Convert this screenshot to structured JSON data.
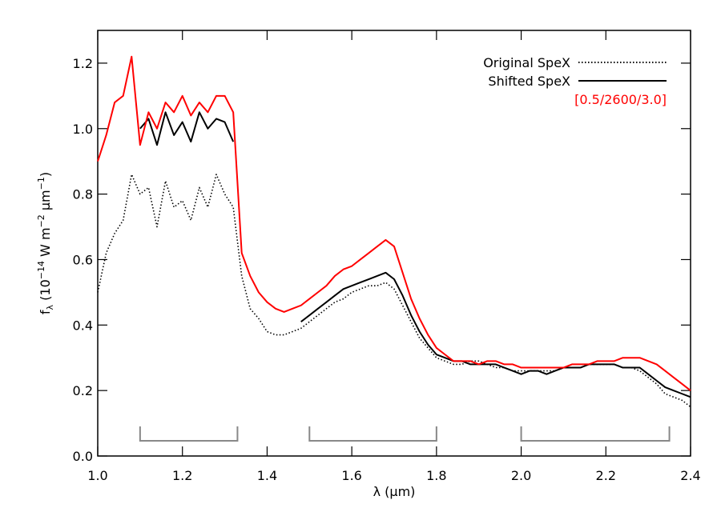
{
  "chart_data": {
    "type": "line",
    "xlabel": "λ (μm)",
    "ylabel_parts": [
      "f",
      "λ",
      " (10",
      "−14",
      " W m",
      "−2",
      " μm",
      "−1",
      ")"
    ],
    "xlim": [
      1.0,
      2.4
    ],
    "ylim": [
      0.0,
      1.3
    ],
    "xticks": [
      {
        "value": 1.0,
        "label": "1.0"
      },
      1.2,
      1.4,
      1.6,
      1.8,
      {
        "value": 2.0,
        "label": "2.0"
      },
      2.2,
      2.4
    ],
    "yticks": [
      {
        "value": 0.0,
        "label": "0.0"
      },
      0.2,
      0.4,
      0.6,
      0.8,
      {
        "value": 1.0,
        "label": "1.0"
      },
      1.2
    ],
    "legend_position": "top-right",
    "x": [
      1.0,
      1.02,
      1.04,
      1.06,
      1.08,
      1.1,
      1.12,
      1.14,
      1.16,
      1.18,
      1.2,
      1.22,
      1.24,
      1.26,
      1.28,
      1.3,
      1.32,
      1.34,
      1.36,
      1.38,
      1.4,
      1.42,
      1.44,
      1.46,
      1.48,
      1.5,
      1.52,
      1.54,
      1.56,
      1.58,
      1.6,
      1.62,
      1.64,
      1.66,
      1.68,
      1.7,
      1.72,
      1.74,
      1.76,
      1.78,
      1.8,
      1.82,
      1.84,
      1.86,
      1.88,
      1.9,
      1.92,
      1.94,
      1.96,
      1.98,
      2.0,
      2.02,
      2.04,
      2.06,
      2.08,
      2.1,
      2.12,
      2.14,
      2.16,
      2.18,
      2.2,
      2.22,
      2.24,
      2.26,
      2.28,
      2.3,
      2.32,
      2.34,
      2.36,
      2.38,
      2.4
    ],
    "series": [
      {
        "name": "Original SpeX",
        "color": "#000000",
        "linestyle": "dotted",
        "legend_line": true,
        "values": [
          0.5,
          0.62,
          0.68,
          0.72,
          0.86,
          0.8,
          0.82,
          0.7,
          0.84,
          0.76,
          0.78,
          0.72,
          0.82,
          0.76,
          0.86,
          0.8,
          0.76,
          0.55,
          0.45,
          0.42,
          0.38,
          0.37,
          0.37,
          0.38,
          0.39,
          0.41,
          0.43,
          0.45,
          0.47,
          0.48,
          0.5,
          0.51,
          0.52,
          0.52,
          0.53,
          0.51,
          0.46,
          0.41,
          0.36,
          0.33,
          0.3,
          0.29,
          0.28,
          0.28,
          0.29,
          0.29,
          0.28,
          0.27,
          0.27,
          0.26,
          0.26,
          0.26,
          0.26,
          0.26,
          0.26,
          0.27,
          0.27,
          0.27,
          0.28,
          0.28,
          0.28,
          0.28,
          0.27,
          0.27,
          0.26,
          0.24,
          0.22,
          0.19,
          0.18,
          0.17,
          0.15
        ]
      },
      {
        "name": "Shifted SpeX",
        "color": "#000000",
        "linestyle": "solid",
        "legend_line": true,
        "values": [
          null,
          null,
          null,
          null,
          null,
          1.0,
          1.03,
          0.95,
          1.05,
          0.98,
          1.02,
          0.96,
          1.05,
          1.0,
          1.03,
          1.02,
          0.96,
          null,
          null,
          null,
          null,
          null,
          null,
          null,
          0.41,
          0.43,
          0.45,
          0.47,
          0.49,
          0.51,
          0.52,
          0.53,
          0.54,
          0.55,
          0.56,
          0.54,
          0.49,
          0.43,
          0.38,
          0.34,
          0.31,
          0.3,
          0.29,
          0.29,
          0.28,
          0.28,
          0.28,
          0.28,
          0.27,
          0.26,
          0.25,
          0.26,
          0.26,
          0.25,
          0.26,
          0.27,
          0.27,
          0.27,
          0.28,
          0.28,
          0.28,
          0.28,
          0.27,
          0.27,
          0.27,
          0.25,
          0.23,
          0.21,
          0.2,
          0.19,
          0.18
        ]
      },
      {
        "name": "[0.5/2600/3.0]",
        "color": "#ff0000",
        "linestyle": "solid",
        "legend_line": false,
        "values": [
          0.9,
          0.98,
          1.08,
          1.1,
          1.22,
          0.95,
          1.05,
          1.0,
          1.08,
          1.05,
          1.1,
          1.04,
          1.08,
          1.05,
          1.1,
          1.1,
          1.05,
          0.62,
          0.55,
          0.5,
          0.47,
          0.45,
          0.44,
          0.45,
          0.46,
          0.48,
          0.5,
          0.52,
          0.55,
          0.57,
          0.58,
          0.6,
          0.62,
          0.64,
          0.66,
          0.64,
          0.56,
          0.48,
          0.42,
          0.37,
          0.33,
          0.31,
          0.29,
          0.29,
          0.29,
          0.28,
          0.29,
          0.29,
          0.28,
          0.28,
          0.27,
          0.27,
          0.27,
          0.27,
          0.27,
          0.27,
          0.28,
          0.28,
          0.28,
          0.29,
          0.29,
          0.29,
          0.3,
          0.3,
          0.3,
          0.29,
          0.28,
          0.26,
          0.24,
          0.22,
          0.2
        ]
      }
    ],
    "bracket_color": "#888888",
    "brackets": [
      [
        1.1,
        1.33
      ],
      [
        1.5,
        1.8
      ],
      [
        2.0,
        2.35
      ]
    ]
  }
}
